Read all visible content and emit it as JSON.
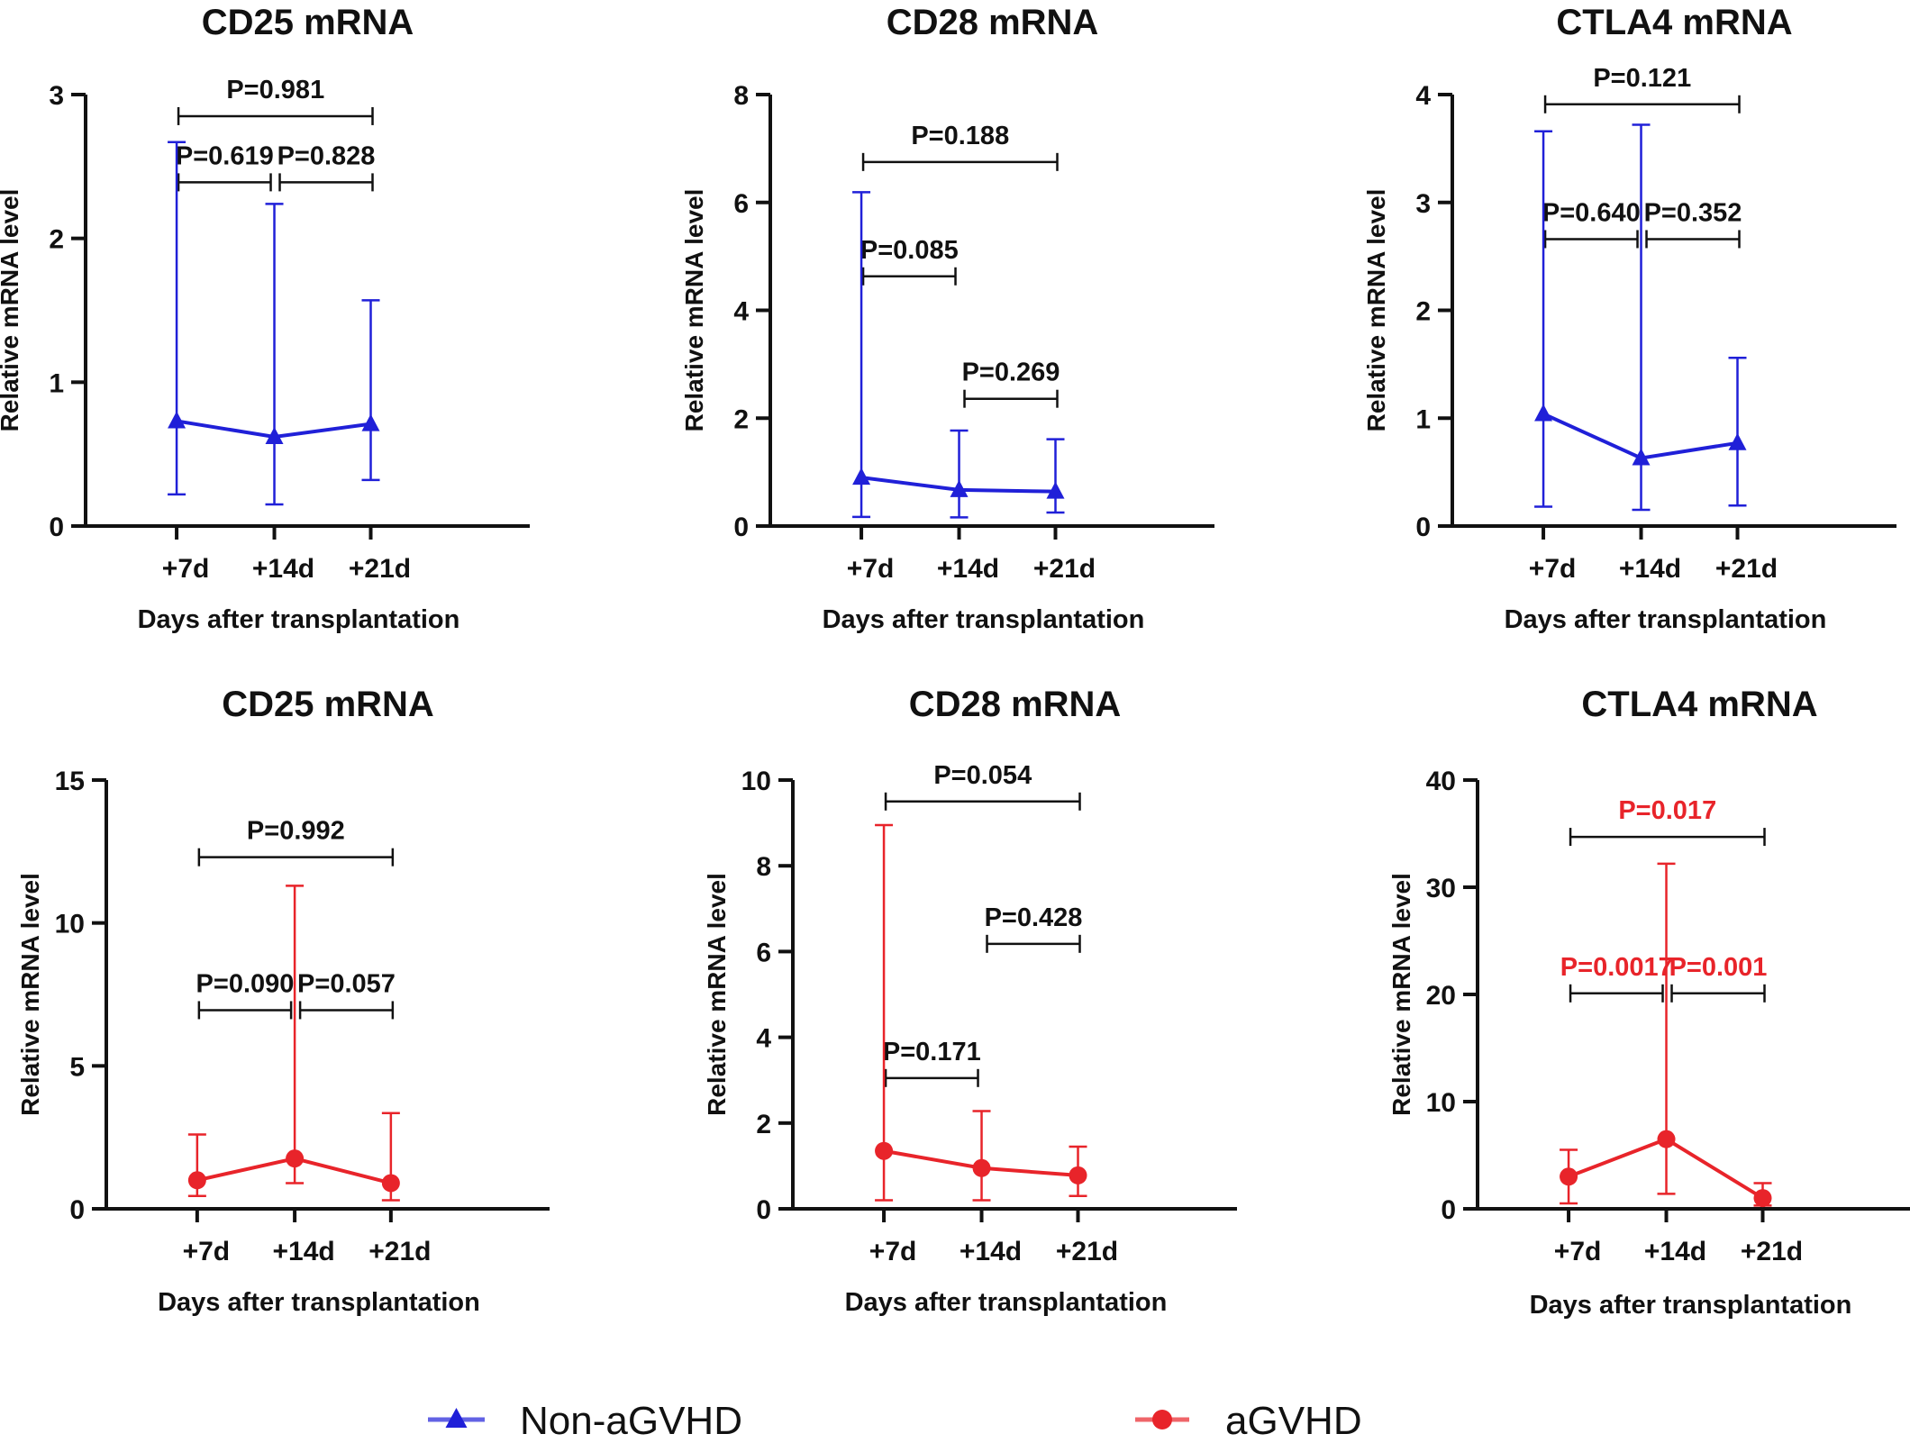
{
  "chart_data": [
    {
      "type": "line",
      "title": "CD25 mRNA",
      "xlabel": "Days after transplantation",
      "ylabel": "Relative  mRNA  level",
      "categories": [
        "+7d",
        "+14d",
        "+21d"
      ],
      "ylim": [
        0,
        3
      ],
      "yticks": [
        "0",
        "1",
        "2",
        "3"
      ],
      "series": [
        {
          "name": "Non-aGVHD",
          "marker": "triangle",
          "color": "#2020d8",
          "values": [
            0.73,
            0.62,
            0.71
          ],
          "err_low": [
            0.22,
            0.15,
            0.32
          ],
          "err_high": [
            2.67,
            2.24,
            1.57
          ]
        }
      ],
      "comparisons": [
        {
          "from": 0,
          "to": 2,
          "y": 2.85,
          "label": "P=0.981",
          "color": "#111111"
        },
        {
          "from": 0,
          "to": 1,
          "y": 2.39,
          "label": "P=0.619",
          "color": "#111111"
        },
        {
          "from": 1,
          "to": 2,
          "y": 2.39,
          "label": "P=0.828",
          "color": "#111111"
        }
      ]
    },
    {
      "type": "line",
      "title": "CD28 mRNA",
      "xlabel": "Days after transplantation",
      "ylabel": "Relative  mRNA  level",
      "categories": [
        "+7d",
        "+14d",
        "+21d"
      ],
      "ylim": [
        0,
        8
      ],
      "yticks": [
        "0",
        "2",
        "4",
        "6",
        "8"
      ],
      "series": [
        {
          "name": "Non-aGVHD",
          "marker": "triangle",
          "color": "#2020d8",
          "values": [
            0.9,
            0.67,
            0.64
          ],
          "err_low": [
            0.17,
            0.16,
            0.25
          ],
          "err_high": [
            6.19,
            1.77,
            1.61
          ]
        }
      ],
      "comparisons": [
        {
          "from": 0,
          "to": 2,
          "y": 6.75,
          "label": "P=0.188",
          "color": "#111111"
        },
        {
          "from": 0,
          "to": 1,
          "y": 4.63,
          "label": "P=0.085",
          "color": "#111111"
        },
        {
          "from": 1,
          "to": 2,
          "y": 2.36,
          "label": "P=0.269",
          "color": "#111111"
        }
      ]
    },
    {
      "type": "line",
      "title": "CTLA4 mRNA",
      "xlabel": "Days after transplantation",
      "ylabel": "Relative  mRNA  level",
      "categories": [
        "+7d",
        "+14d",
        "+21d"
      ],
      "ylim": [
        0,
        4
      ],
      "yticks": [
        "0",
        "1",
        "2",
        "3",
        "4"
      ],
      "series": [
        {
          "name": "Non-aGVHD",
          "marker": "triangle",
          "color": "#2020d8",
          "values": [
            1.04,
            0.63,
            0.77
          ],
          "err_low": [
            0.18,
            0.15,
            0.19
          ],
          "err_high": [
            3.66,
            3.72,
            1.56
          ]
        }
      ],
      "comparisons": [
        {
          "from": 0,
          "to": 2,
          "y": 3.91,
          "label": "P=0.121",
          "color": "#111111"
        },
        {
          "from": 0,
          "to": 1,
          "y": 2.66,
          "label": "P=0.640",
          "color": "#111111"
        },
        {
          "from": 1,
          "to": 2,
          "y": 2.66,
          "label": "P=0.352",
          "color": "#111111"
        }
      ]
    },
    {
      "type": "line",
      "title": "CD25 mRNA",
      "xlabel": "Days after transplantation",
      "ylabel": "Relative  mRNA  level",
      "categories": [
        "+7d",
        "+14d",
        "+21d"
      ],
      "ylim": [
        0,
        15
      ],
      "yticks": [
        "0",
        "5",
        "10",
        "15"
      ],
      "series": [
        {
          "name": "aGVHD",
          "marker": "circle",
          "color": "#e8242a",
          "values": [
            1.0,
            1.76,
            0.9
          ],
          "err_low": [
            0.45,
            0.9,
            0.3
          ],
          "err_high": [
            2.6,
            11.3,
            3.35
          ]
        }
      ],
      "comparisons": [
        {
          "from": 0,
          "to": 2,
          "y": 12.3,
          "label": "P=0.992",
          "color": "#111111"
        },
        {
          "from": 0,
          "to": 1,
          "y": 6.95,
          "label": "P=0.090",
          "color": "#111111"
        },
        {
          "from": 1,
          "to": 2,
          "y": 6.95,
          "label": "P=0.057",
          "color": "#111111"
        }
      ]
    },
    {
      "type": "line",
      "title": "CD28 mRNA",
      "xlabel": "Days after transplantation",
      "ylabel": "Relative  mRNA  level",
      "categories": [
        "+7d",
        "+14d",
        "+21d"
      ],
      "ylim": [
        0,
        10
      ],
      "yticks": [
        "0",
        "2",
        "4",
        "6",
        "8",
        "10"
      ],
      "series": [
        {
          "name": "aGVHD",
          "marker": "circle",
          "color": "#e8242a",
          "values": [
            1.35,
            0.95,
            0.78
          ],
          "err_low": [
            0.2,
            0.2,
            0.3
          ],
          "err_high": [
            8.95,
            2.28,
            1.45
          ]
        }
      ],
      "comparisons": [
        {
          "from": 0,
          "to": 2,
          "y": 9.5,
          "label": "P=0.054",
          "color": "#111111"
        },
        {
          "from": 1,
          "to": 2,
          "y": 6.18,
          "label": "P=0.428",
          "color": "#111111"
        },
        {
          "from": 0,
          "to": 1,
          "y": 3.05,
          "label": "P=0.171",
          "color": "#111111"
        }
      ]
    },
    {
      "type": "line",
      "title": "CTLA4 mRNA",
      "xlabel": "Days after transplantation",
      "ylabel": "Relative  mRNA  level",
      "categories": [
        "+7d",
        "+14d",
        "+21d"
      ],
      "ylim": [
        0,
        40
      ],
      "yticks": [
        "0",
        "10",
        "20",
        "30",
        "40"
      ],
      "series": [
        {
          "name": "aGVHD",
          "marker": "circle",
          "color": "#e8242a",
          "values": [
            3.0,
            6.5,
            1.0
          ],
          "err_low": [
            0.5,
            1.4,
            0.3
          ],
          "err_high": [
            5.5,
            32.2,
            2.4
          ]
        }
      ],
      "comparisons": [
        {
          "from": 0,
          "to": 2,
          "y": 34.7,
          "label": "P=0.017",
          "color": "#e8242a"
        },
        {
          "from": 0,
          "to": 1,
          "y": 20.1,
          "label": "P=0.0017",
          "color": "#e8242a"
        },
        {
          "from": 1,
          "to": 2,
          "y": 20.1,
          "label": "P=0.001",
          "color": "#e8242a"
        }
      ]
    }
  ],
  "legend": [
    {
      "label": "Non-aGVHD",
      "marker": "triangle",
      "color": "#2020d8"
    },
    {
      "label": "aGVHD",
      "marker": "circle",
      "color": "#e8242a"
    }
  ]
}
